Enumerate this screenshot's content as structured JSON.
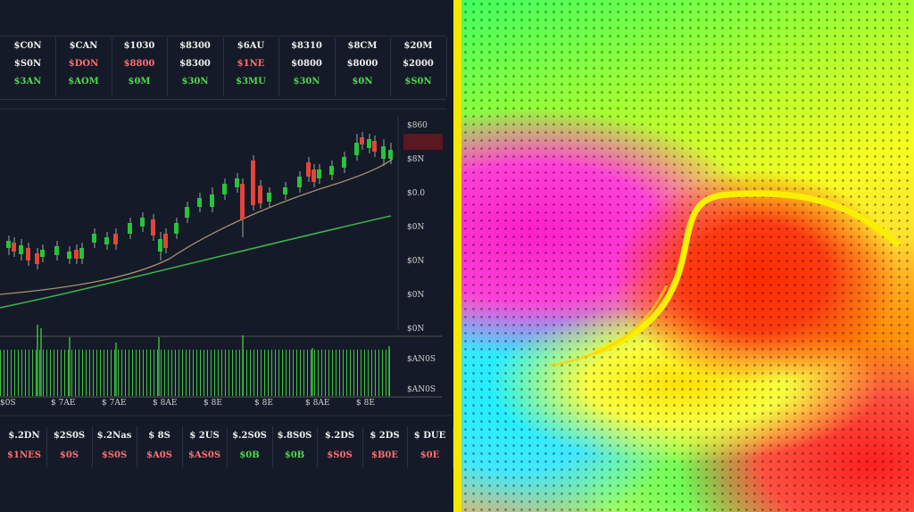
{
  "header_tickers": [
    [
      "$C0N",
      "$S0N",
      "$3AN"
    ],
    [
      "$CAN",
      "$DON",
      "$AOM"
    ],
    [
      "$1030",
      "$8800",
      "$0M"
    ],
    [
      "$8300",
      "$8300",
      "$30N"
    ],
    [
      "$6AU",
      "$1NE",
      "$3MU"
    ],
    [
      "$8310",
      "$0800",
      "$30N"
    ],
    [
      "$8CM",
      "$8000",
      "$0N"
    ],
    [
      "$20M",
      "$2000",
      "$S0N"
    ]
  ],
  "price_axis": [
    "$860",
    "$8N",
    "$0.0",
    "$0N",
    "$0N",
    "$0N",
    "$0N"
  ],
  "volume_axis": [
    "$AN0S",
    "$AN0S"
  ],
  "time_axis": [
    "$0S",
    "$ 7AE",
    "$ 7AE",
    "$ 8AE",
    "$ 8E",
    "$ 8E",
    "$ 8AE",
    "$ 8E"
  ],
  "footer_tickers": [
    [
      "$.2DN",
      "$1NES"
    ],
    [
      "$2S0S",
      "$0S"
    ],
    [
      "$.2Nas",
      "$S0S"
    ],
    [
      "$ 8S",
      "$A0S"
    ],
    [
      "$ 2US",
      "$AS0S"
    ],
    [
      "$.2S0S",
      "$0B"
    ],
    [
      "$.8S0S",
      "$0B"
    ],
    [
      "$.2DS",
      "$S0S"
    ],
    [
      "$ 2DS",
      "$B0E"
    ],
    [
      "$ DUE",
      "$0E"
    ]
  ]
}
